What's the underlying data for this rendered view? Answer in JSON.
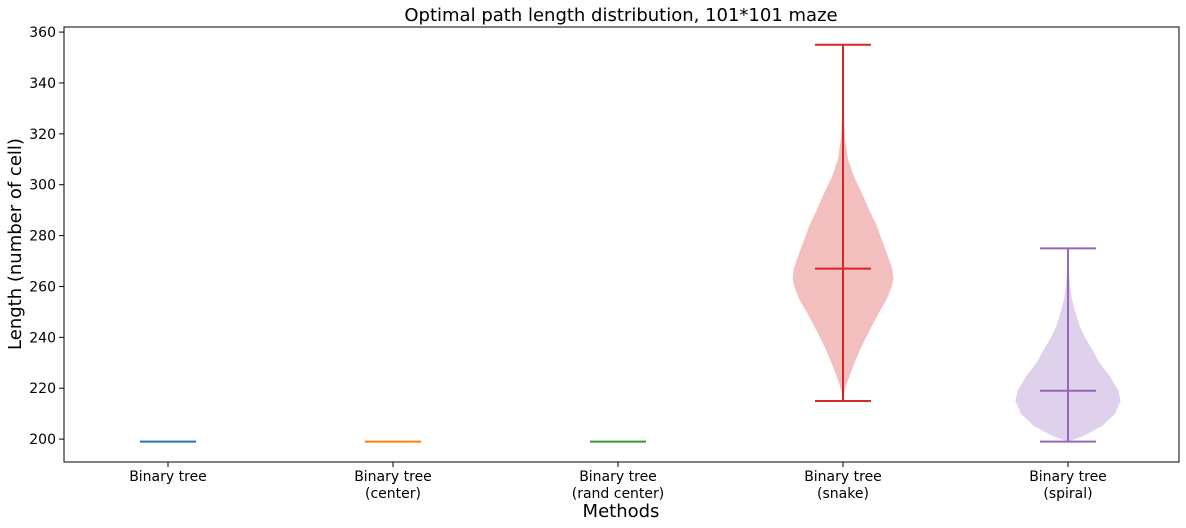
{
  "chart_data": {
    "type": "violin",
    "title": "Optimal path length distribution, 101*101 maze",
    "xlabel": "Methods",
    "ylabel": "Length (number of cell)",
    "ylim": [
      191,
      362
    ],
    "yticks": [
      200,
      220,
      240,
      260,
      280,
      300,
      320,
      340,
      360
    ],
    "grid": false,
    "series": [
      {
        "label_lines": [
          "Binary tree"
        ],
        "color": "#1f77b4",
        "min": 199,
        "median": 199,
        "max": 199,
        "profile": []
      },
      {
        "label_lines": [
          "Binary tree",
          "(center)"
        ],
        "color": "#ff7f0e",
        "min": 199,
        "median": 199,
        "max": 199,
        "profile": []
      },
      {
        "label_lines": [
          "Binary tree",
          "(rand center)"
        ],
        "color": "#2ca02c",
        "min": 199,
        "median": 199,
        "max": 199,
        "profile": []
      },
      {
        "label_lines": [
          "Binary tree",
          "(snake)"
        ],
        "color": "#d62728",
        "min": 215,
        "median": 267,
        "max": 355,
        "profile": [
          [
            215,
            0.0
          ],
          [
            218,
            0.02
          ],
          [
            222,
            0.07
          ],
          [
            228,
            0.17
          ],
          [
            235,
            0.3
          ],
          [
            243,
            0.48
          ],
          [
            250,
            0.65
          ],
          [
            255,
            0.78
          ],
          [
            260,
            0.87
          ],
          [
            263,
            0.9
          ],
          [
            267,
            0.88
          ],
          [
            272,
            0.8
          ],
          [
            278,
            0.7
          ],
          [
            284,
            0.6
          ],
          [
            290,
            0.47
          ],
          [
            297,
            0.33
          ],
          [
            303,
            0.2
          ],
          [
            310,
            0.09
          ],
          [
            318,
            0.04
          ],
          [
            325,
            0.02
          ],
          [
            332,
            0.01
          ],
          [
            342,
            0.005
          ],
          [
            355,
            0.0
          ]
        ]
      },
      {
        "label_lines": [
          "Binary tree",
          "(spiral)"
        ],
        "color": "#9467bd",
        "min": 199,
        "median": 219,
        "max": 275,
        "profile": [
          [
            199,
            0.0
          ],
          [
            201,
            0.25
          ],
          [
            205,
            0.6
          ],
          [
            210,
            0.84
          ],
          [
            215,
            0.94
          ],
          [
            219,
            0.9
          ],
          [
            225,
            0.74
          ],
          [
            230,
            0.56
          ],
          [
            235,
            0.44
          ],
          [
            240,
            0.3
          ],
          [
            245,
            0.2
          ],
          [
            250,
            0.13
          ],
          [
            255,
            0.07
          ],
          [
            260,
            0.04
          ],
          [
            265,
            0.02
          ],
          [
            270,
            0.01
          ],
          [
            275,
            0.0
          ]
        ]
      }
    ]
  }
}
